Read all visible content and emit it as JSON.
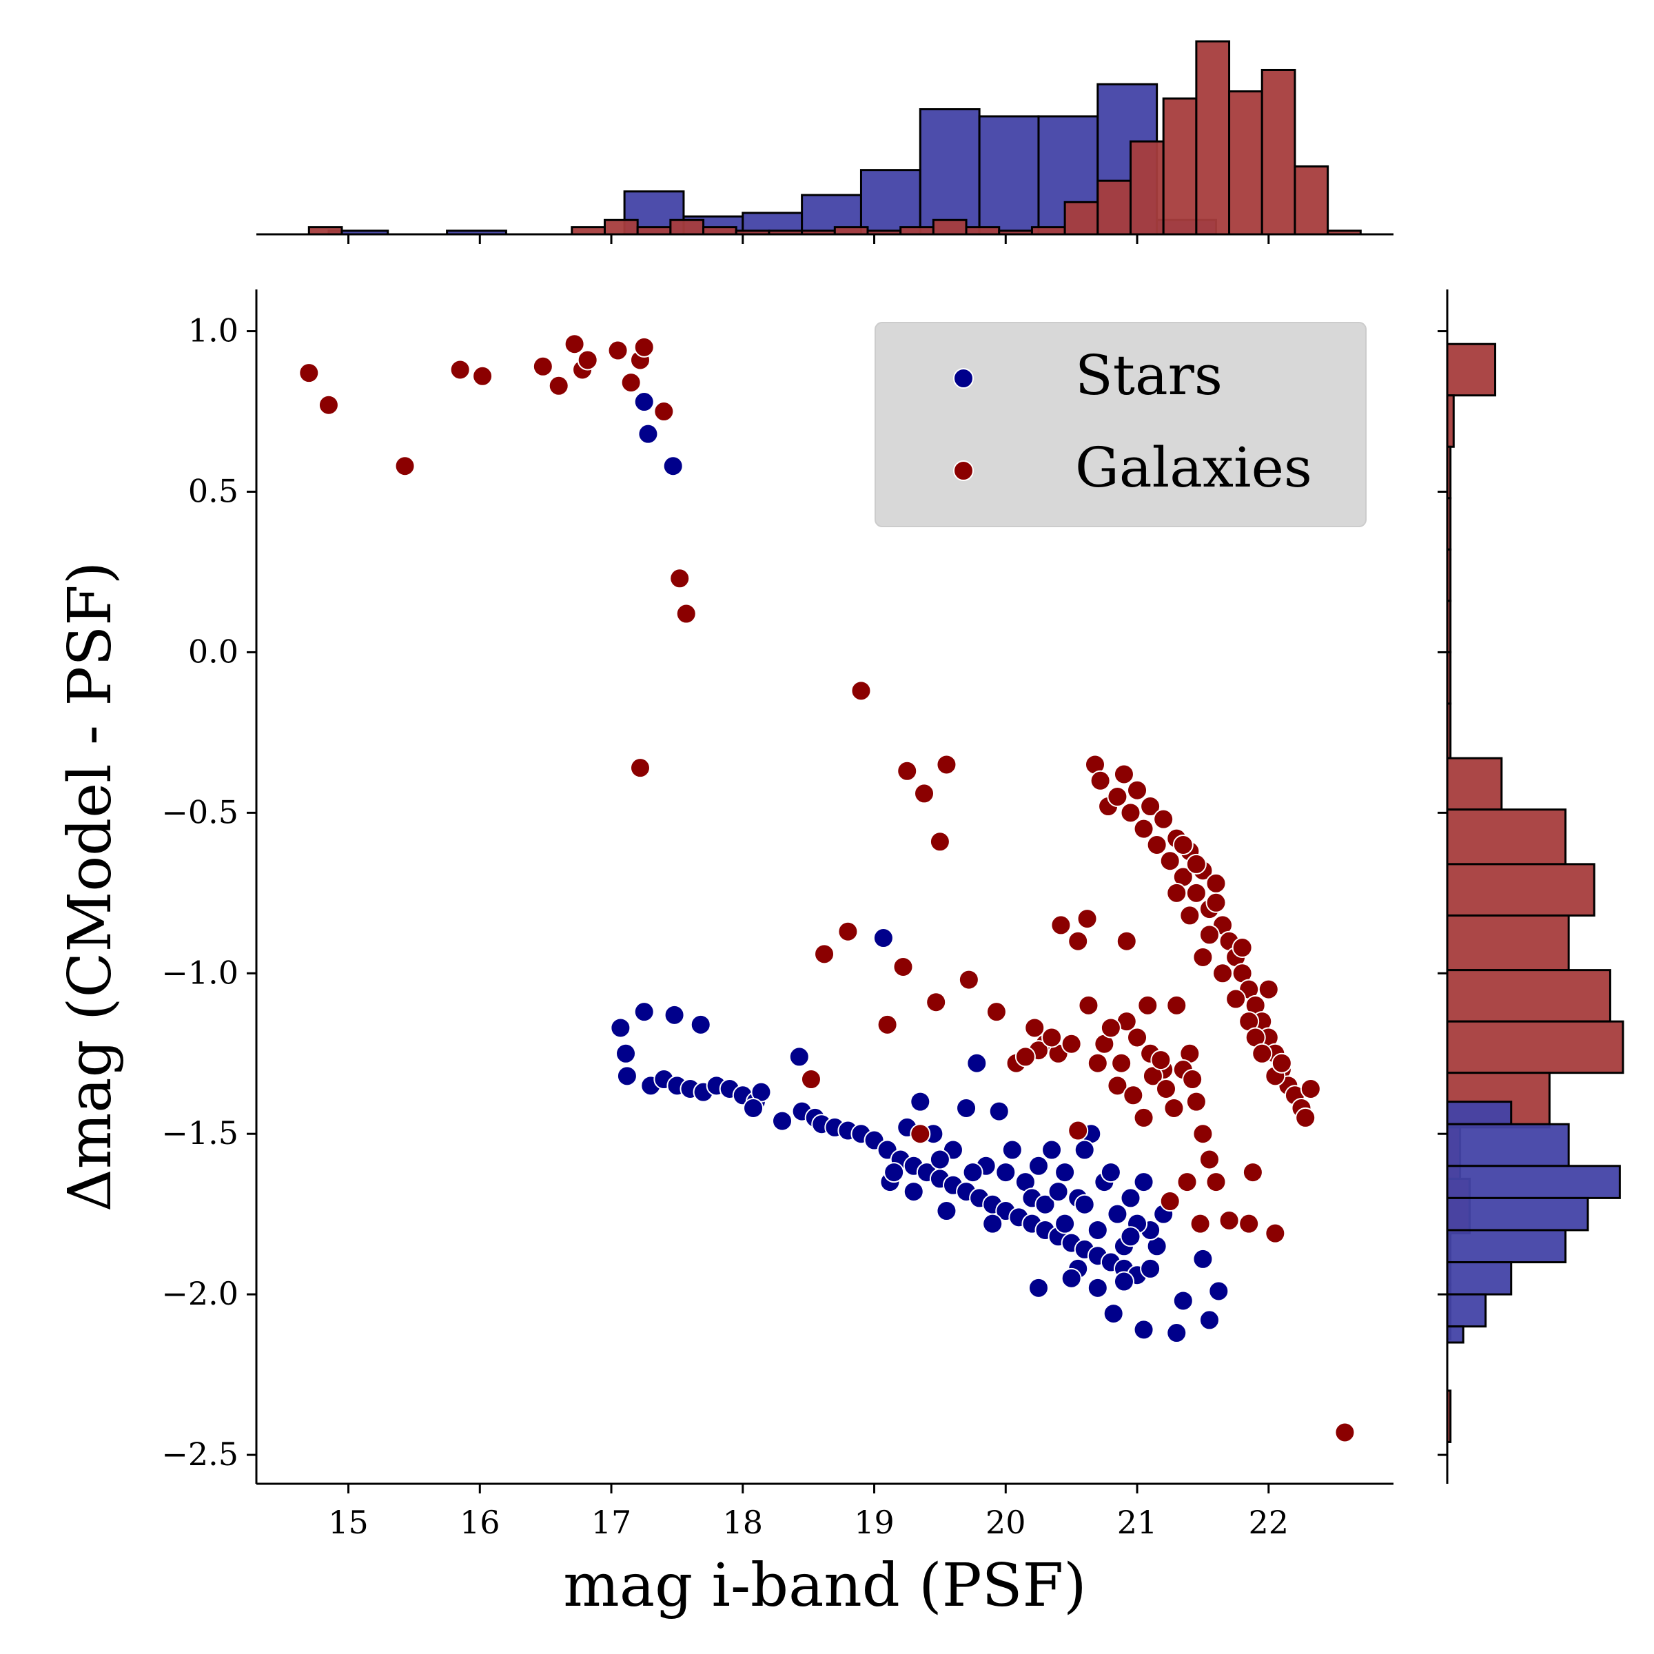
{
  "chart_data": {
    "type": "scatter",
    "xlabel": "mag i-band (PSF)",
    "ylabel": "Δmag (CModel - PSF)",
    "xlim": [
      14.3,
      22.95
    ],
    "ylim": [
      -2.59,
      1.13
    ],
    "x_ticks": [
      15,
      16,
      17,
      18,
      19,
      20,
      21,
      22
    ],
    "y_ticks": [
      1.0,
      0.5,
      0.0,
      -0.5,
      -1.0,
      -1.5,
      -2.0,
      -2.5
    ],
    "x_tick_labels": [
      "15",
      "16",
      "17",
      "18",
      "19",
      "20",
      "21",
      "22"
    ],
    "y_tick_labels": [
      "1.0",
      "0.5",
      "0.0",
      "−0.5",
      "−1.0",
      "−1.5",
      "−2.0",
      "−2.5"
    ],
    "legend": {
      "location": "upper right",
      "entries": [
        {
          "label": "Stars",
          "color": "#00008b"
        },
        {
          "label": "Galaxies",
          "color": "#8b0000"
        }
      ]
    },
    "series": [
      {
        "name": "Stars",
        "color": "#00008b",
        "hist_color": "#4343a7",
        "points": [
          [
            17.25,
            0.78
          ],
          [
            17.28,
            0.68
          ],
          [
            17.47,
            0.58
          ],
          [
            19.07,
            -0.89
          ],
          [
            17.07,
            -1.17
          ],
          [
            17.11,
            -1.25
          ],
          [
            17.12,
            -1.32
          ],
          [
            17.25,
            -1.12
          ],
          [
            17.48,
            -1.13
          ],
          [
            17.68,
            -1.16
          ],
          [
            17.3,
            -1.35
          ],
          [
            17.4,
            -1.33
          ],
          [
            17.5,
            -1.35
          ],
          [
            17.6,
            -1.36
          ],
          [
            17.7,
            -1.37
          ],
          [
            17.8,
            -1.35
          ],
          [
            17.9,
            -1.36
          ],
          [
            18.0,
            -1.38
          ],
          [
            18.1,
            -1.4
          ],
          [
            18.14,
            -1.37
          ],
          [
            18.08,
            -1.42
          ],
          [
            18.3,
            -1.46
          ],
          [
            18.43,
            -1.26
          ],
          [
            18.45,
            -1.43
          ],
          [
            18.55,
            -1.45
          ],
          [
            18.6,
            -1.47
          ],
          [
            18.7,
            -1.48
          ],
          [
            18.8,
            -1.49
          ],
          [
            18.9,
            -1.5
          ],
          [
            19.0,
            -1.52
          ],
          [
            19.1,
            -1.55
          ],
          [
            19.12,
            -1.65
          ],
          [
            19.2,
            -1.58
          ],
          [
            19.3,
            -1.6
          ],
          [
            19.4,
            -1.62
          ],
          [
            19.5,
            -1.64
          ],
          [
            19.55,
            -1.74
          ],
          [
            19.6,
            -1.66
          ],
          [
            19.7,
            -1.68
          ],
          [
            19.78,
            -1.28
          ],
          [
            19.8,
            -1.7
          ],
          [
            19.9,
            -1.72
          ],
          [
            19.95,
            -1.43
          ],
          [
            20.0,
            -1.74
          ],
          [
            20.1,
            -1.76
          ],
          [
            20.2,
            -1.78
          ],
          [
            20.25,
            -1.98
          ],
          [
            20.3,
            -1.8
          ],
          [
            20.4,
            -1.82
          ],
          [
            20.45,
            -1.62
          ],
          [
            20.5,
            -1.84
          ],
          [
            20.55,
            -1.92
          ],
          [
            20.6,
            -1.86
          ],
          [
            20.65,
            -1.5
          ],
          [
            20.7,
            -1.88
          ],
          [
            20.8,
            -1.9
          ],
          [
            20.82,
            -2.06
          ],
          [
            20.9,
            -1.92
          ],
          [
            21.0,
            -1.94
          ],
          [
            21.05,
            -2.11
          ],
          [
            21.15,
            -1.85
          ],
          [
            21.3,
            -2.12
          ],
          [
            21.35,
            -2.02
          ],
          [
            21.5,
            -1.89
          ],
          [
            21.55,
            -2.08
          ],
          [
            21.62,
            -1.99
          ],
          [
            19.35,
            -1.4
          ],
          [
            19.45,
            -1.5
          ],
          [
            19.6,
            -1.55
          ],
          [
            19.7,
            -1.42
          ],
          [
            19.85,
            -1.6
          ],
          [
            20.05,
            -1.55
          ],
          [
            20.15,
            -1.65
          ],
          [
            20.35,
            -1.55
          ],
          [
            20.55,
            -1.7
          ],
          [
            20.6,
            -1.55
          ],
          [
            20.75,
            -1.65
          ],
          [
            20.85,
            -1.75
          ],
          [
            20.95,
            -1.7
          ],
          [
            21.05,
            -1.65
          ],
          [
            21.1,
            -1.8
          ],
          [
            21.2,
            -1.75
          ],
          [
            20.2,
            -1.7
          ],
          [
            20.0,
            -1.62
          ],
          [
            19.9,
            -1.78
          ],
          [
            20.3,
            -1.72
          ],
          [
            20.45,
            -1.78
          ],
          [
            20.7,
            -1.8
          ],
          [
            20.9,
            -1.85
          ],
          [
            21.0,
            -1.78
          ],
          [
            19.25,
            -1.48
          ],
          [
            19.15,
            -1.62
          ],
          [
            19.3,
            -1.68
          ],
          [
            19.5,
            -1.58
          ],
          [
            19.75,
            -1.62
          ],
          [
            20.25,
            -1.6
          ],
          [
            20.4,
            -1.68
          ],
          [
            20.6,
            -1.72
          ],
          [
            20.8,
            -1.62
          ],
          [
            20.95,
            -1.82
          ],
          [
            21.1,
            -1.92
          ],
          [
            20.5,
            -1.95
          ],
          [
            20.7,
            -1.98
          ],
          [
            20.9,
            -1.96
          ]
        ]
      },
      {
        "name": "Galaxies",
        "color": "#8b0000",
        "hist_color": "#a73d3d",
        "points": [
          [
            14.7,
            0.87
          ],
          [
            14.85,
            0.77
          ],
          [
            15.43,
            0.58
          ],
          [
            15.85,
            0.88
          ],
          [
            16.02,
            0.86
          ],
          [
            16.48,
            0.89
          ],
          [
            16.6,
            0.83
          ],
          [
            16.72,
            0.96
          ],
          [
            16.78,
            0.88
          ],
          [
            16.82,
            0.91
          ],
          [
            17.05,
            0.94
          ],
          [
            17.15,
            0.84
          ],
          [
            17.22,
            0.91
          ],
          [
            17.25,
            0.95
          ],
          [
            17.4,
            0.75
          ],
          [
            17.52,
            0.23
          ],
          [
            17.57,
            0.12
          ],
          [
            18.9,
            -0.12
          ],
          [
            17.22,
            -0.36
          ],
          [
            19.25,
            -0.37
          ],
          [
            19.38,
            -0.44
          ],
          [
            19.55,
            -0.35
          ],
          [
            19.5,
            -0.59
          ],
          [
            18.62,
            -0.94
          ],
          [
            18.8,
            -0.87
          ],
          [
            19.22,
            -0.98
          ],
          [
            19.1,
            -1.16
          ],
          [
            18.52,
            -1.33
          ],
          [
            19.47,
            -1.09
          ],
          [
            19.72,
            -1.02
          ],
          [
            19.93,
            -1.12
          ],
          [
            19.35,
            -1.5
          ],
          [
            20.08,
            -1.28
          ],
          [
            20.22,
            -1.17
          ],
          [
            20.3,
            -1.22
          ],
          [
            20.4,
            -1.25
          ],
          [
            20.42,
            -0.85
          ],
          [
            20.55,
            -0.9
          ],
          [
            20.62,
            -0.83
          ],
          [
            20.92,
            -0.9
          ],
          [
            20.63,
            -1.1
          ],
          [
            20.7,
            -1.28
          ],
          [
            20.85,
            -1.35
          ],
          [
            20.92,
            -1.15
          ],
          [
            21.0,
            -1.2
          ],
          [
            21.1,
            -1.25
          ],
          [
            21.2,
            -1.3
          ],
          [
            21.08,
            -1.1
          ],
          [
            21.3,
            -1.1
          ],
          [
            21.4,
            -1.25
          ],
          [
            21.45,
            -1.4
          ],
          [
            21.5,
            -1.5
          ],
          [
            21.55,
            -1.58
          ],
          [
            21.6,
            -1.65
          ],
          [
            21.48,
            -1.78
          ],
          [
            21.7,
            -1.77
          ],
          [
            21.88,
            -1.62
          ],
          [
            22.05,
            -1.81
          ],
          [
            21.85,
            -1.78
          ],
          [
            21.38,
            -1.65
          ],
          [
            20.55,
            -1.49
          ],
          [
            21.25,
            -1.71
          ],
          [
            22.58,
            -2.43
          ],
          [
            20.68,
            -0.35
          ],
          [
            20.72,
            -0.4
          ],
          [
            20.78,
            -0.48
          ],
          [
            20.85,
            -0.45
          ],
          [
            20.9,
            -0.38
          ],
          [
            20.95,
            -0.5
          ],
          [
            21.0,
            -0.43
          ],
          [
            21.05,
            -0.55
          ],
          [
            21.1,
            -0.48
          ],
          [
            21.15,
            -0.6
          ],
          [
            21.2,
            -0.52
          ],
          [
            21.25,
            -0.65
          ],
          [
            21.3,
            -0.58
          ],
          [
            21.35,
            -0.7
          ],
          [
            21.4,
            -0.62
          ],
          [
            21.45,
            -0.75
          ],
          [
            21.5,
            -0.68
          ],
          [
            21.55,
            -0.8
          ],
          [
            21.6,
            -0.72
          ],
          [
            21.65,
            -0.85
          ],
          [
            21.7,
            -0.9
          ],
          [
            21.75,
            -0.95
          ],
          [
            21.8,
            -1.0
          ],
          [
            21.85,
            -1.05
          ],
          [
            21.9,
            -1.1
          ],
          [
            21.95,
            -1.15
          ],
          [
            22.0,
            -1.2
          ],
          [
            22.05,
            -1.25
          ],
          [
            22.1,
            -1.3
          ],
          [
            22.15,
            -1.35
          ],
          [
            22.2,
            -1.38
          ],
          [
            22.25,
            -1.42
          ],
          [
            22.28,
            -1.45
          ],
          [
            22.32,
            -1.36
          ],
          [
            21.5,
            -0.95
          ],
          [
            21.55,
            -0.88
          ],
          [
            21.65,
            -1.0
          ],
          [
            21.75,
            -1.08
          ],
          [
            21.8,
            -0.92
          ],
          [
            21.85,
            -1.15
          ],
          [
            21.9,
            -1.2
          ],
          [
            21.95,
            -1.25
          ],
          [
            22.0,
            -1.05
          ],
          [
            22.05,
            -1.32
          ],
          [
            22.1,
            -1.28
          ],
          [
            21.3,
            -0.75
          ],
          [
            21.4,
            -0.82
          ],
          [
            21.45,
            -0.66
          ],
          [
            21.6,
            -0.78
          ],
          [
            21.35,
            -0.6
          ],
          [
            20.75,
            -1.22
          ],
          [
            20.8,
            -1.17
          ],
          [
            20.88,
            -1.28
          ],
          [
            20.97,
            -1.38
          ],
          [
            21.05,
            -1.45
          ],
          [
            21.12,
            -1.32
          ],
          [
            21.18,
            -1.27
          ],
          [
            21.22,
            -1.36
          ],
          [
            21.28,
            -1.42
          ],
          [
            21.35,
            -1.3
          ],
          [
            21.42,
            -1.33
          ],
          [
            20.25,
            -1.24
          ],
          [
            20.35,
            -1.2
          ],
          [
            20.5,
            -1.22
          ],
          [
            20.15,
            -1.26
          ]
        ],
        "hist_note": "marginal histograms drawn from histogram values below"
      }
    ],
    "hist_top": {
      "Stars": {
        "edges": [
          14.85,
          15.3,
          15.75,
          16.2,
          16.65,
          17.1,
          17.55,
          18.0,
          18.45,
          18.9,
          19.35,
          19.8,
          20.25,
          20.7,
          21.15,
          21.6
        ],
        "counts": [
          1,
          0,
          1,
          0,
          0,
          12,
          5,
          6,
          11,
          18,
          35,
          33,
          33,
          42,
          4
        ]
      },
      "Galaxies": {
        "edges": [
          14.7,
          14.95,
          15.2,
          15.45,
          15.7,
          15.95,
          16.2,
          16.45,
          16.7,
          16.95,
          17.2,
          17.45,
          17.7,
          17.95,
          18.2,
          18.45,
          18.7,
          18.95,
          19.2,
          19.45,
          19.7,
          19.95,
          20.2,
          20.45,
          20.7,
          20.95,
          21.2,
          21.45,
          21.7,
          21.95,
          22.2,
          22.45,
          22.7
        ],
        "counts": [
          2,
          0,
          0,
          0,
          0,
          0,
          0,
          0,
          2,
          4,
          2,
          4,
          2,
          1,
          1,
          1,
          2,
          1,
          2,
          4,
          2,
          1,
          2,
          9,
          15,
          26,
          38,
          54,
          40,
          46,
          19,
          1
        ]
      }
    },
    "hist_right": {
      "Stars": {
        "bins": [
          [
            -1.47,
            -1.4
          ],
          [
            -1.6,
            -1.47
          ],
          [
            -1.7,
            -1.6
          ],
          [
            -1.8,
            -1.7
          ],
          [
            -1.9,
            -1.8
          ],
          [
            -2.0,
            -1.9
          ],
          [
            -2.1,
            -2.0
          ],
          [
            -2.15,
            -2.1
          ]
        ],
        "counts": [
          20,
          38,
          54,
          44,
          37,
          20,
          12,
          5
        ]
      },
      "Galaxies": {
        "bins": [
          [
            0.8,
            0.96
          ],
          [
            0.64,
            0.8
          ],
          [
            0.48,
            0.64
          ],
          [
            0.32,
            0.48
          ],
          [
            0.16,
            0.32
          ],
          [
            0.0,
            0.16
          ],
          [
            -0.16,
            0.0
          ],
          [
            -0.33,
            -0.16
          ],
          [
            -0.49,
            -0.33
          ],
          [
            -0.66,
            -0.49
          ],
          [
            -0.82,
            -0.66
          ],
          [
            -0.99,
            -0.82
          ],
          [
            -1.15,
            -0.99
          ],
          [
            -1.31,
            -1.15
          ],
          [
            -1.48,
            -1.31
          ],
          [
            -1.64,
            -1.48
          ],
          [
            -1.81,
            -1.64
          ],
          [
            -1.97,
            -1.81
          ],
          [
            -2.14,
            -1.97
          ],
          [
            -2.3,
            -2.14
          ],
          [
            -2.46,
            -2.3
          ]
        ],
        "counts": [
          15,
          2,
          1,
          1,
          1,
          1,
          1,
          1,
          17,
          37,
          46,
          38,
          51,
          55,
          32,
          4,
          7,
          1,
          1,
          0,
          1
        ]
      }
    }
  }
}
